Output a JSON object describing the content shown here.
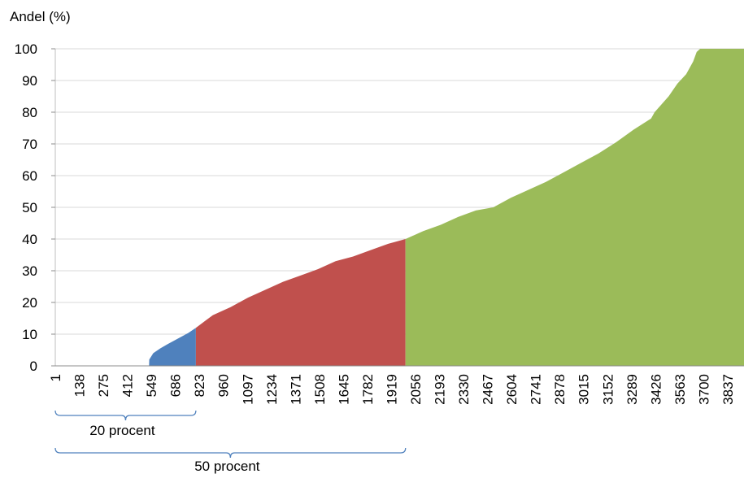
{
  "chart_data": {
    "type": "area",
    "title": "",
    "xlabel": "",
    "ylabel": "Andel (%)",
    "ylim": [
      0,
      100
    ],
    "yticks": [
      0,
      10,
      20,
      30,
      40,
      50,
      60,
      70,
      80,
      90,
      100
    ],
    "xlim": [
      1,
      3930
    ],
    "xticks": [
      "1",
      "138",
      "275",
      "412",
      "549",
      "686",
      "823",
      "960",
      "1097",
      "1234",
      "1371",
      "1508",
      "1645",
      "1782",
      "1919",
      "2056",
      "2193",
      "2330",
      "2467",
      "2604",
      "2741",
      "2878",
      "3015",
      "3152",
      "3289",
      "3426",
      "3563",
      "3700",
      "3837"
    ],
    "grid": true,
    "series": [
      {
        "color": "#4f81bd",
        "x": [
          1,
          536,
          537,
          560,
          600,
          640,
          700,
          760,
          790,
          803
        ],
        "y": [
          0,
          0,
          2,
          4,
          5.5,
          6.8,
          8.6,
          10.4,
          11.5,
          12
        ]
      },
      {
        "color": "#c0504d",
        "x": [
          803,
          900,
          1000,
          1100,
          1200,
          1300,
          1400,
          1500,
          1600,
          1700,
          1800,
          1900,
          1999
        ],
        "y": [
          12,
          16,
          18.5,
          21.5,
          24,
          26.5,
          28.5,
          30.5,
          33,
          34.5,
          36.5,
          38.5,
          40
        ]
      },
      {
        "color": "#9bbb59",
        "x": [
          1999,
          2100,
          2200,
          2300,
          2400,
          2500,
          2600,
          2700,
          2800,
          2900,
          3000,
          3100,
          3200,
          3300,
          3400,
          3420,
          3500,
          3550,
          3600,
          3640,
          3660,
          3680,
          3930
        ],
        "y": [
          40,
          42.5,
          44.5,
          47,
          49,
          50,
          53,
          55.5,
          58,
          61,
          64,
          67,
          70.5,
          74.5,
          78,
          80,
          85,
          89,
          92,
          96,
          99,
          100,
          100
        ]
      }
    ],
    "annotations": [
      {
        "text": "20 procent",
        "from": 1,
        "to": 803
      },
      {
        "text": "50 procent",
        "from": 1,
        "to": 1999
      }
    ]
  }
}
